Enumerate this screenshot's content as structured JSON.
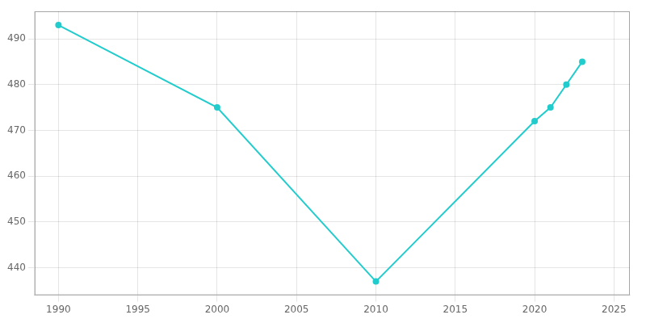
{
  "chart_data": {
    "type": "line",
    "x": [
      1990,
      2000,
      2010,
      2020,
      2021,
      2022,
      2023
    ],
    "values": [
      493,
      475,
      437,
      472,
      475,
      480,
      485
    ],
    "color": "#22CCCC",
    "marker": "circle",
    "xlim": [
      1988.5,
      2026
    ],
    "ylim": [
      434,
      496
    ],
    "xticks": [
      1990,
      1995,
      2000,
      2005,
      2010,
      2015,
      2020,
      2025
    ],
    "yticks": [
      440,
      450,
      460,
      470,
      480,
      490
    ],
    "grid": true
  }
}
